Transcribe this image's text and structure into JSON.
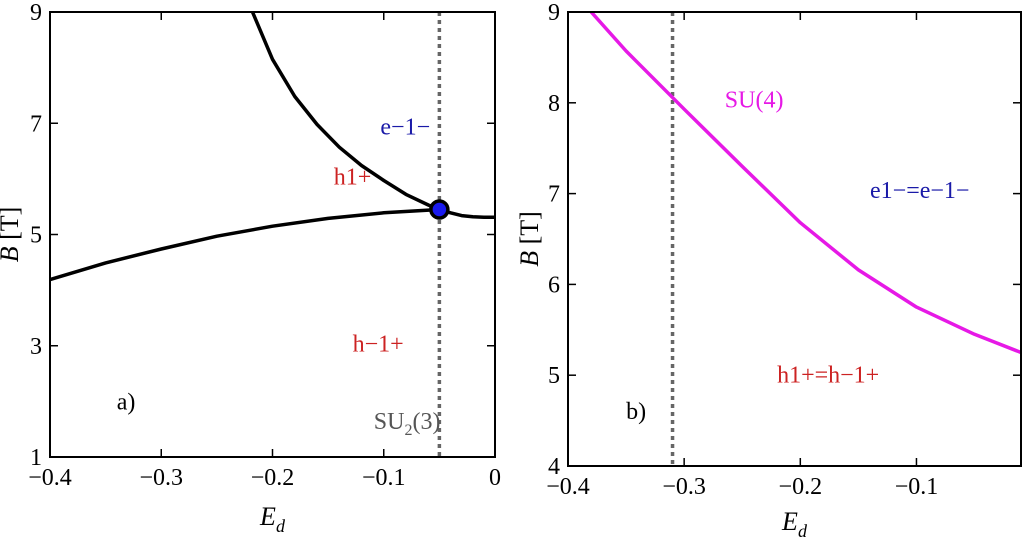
{
  "chart_data": [
    {
      "type": "line",
      "panel_label": "a)",
      "xlabel": {
        "main": "E",
        "sub": "d"
      },
      "ylabel": {
        "main": "B",
        "unit": " [T]"
      },
      "xlim": [
        -0.4,
        0.0
      ],
      "ylim": [
        1,
        9
      ],
      "xticks": [
        -0.4,
        -0.3,
        -0.2,
        -0.1,
        0.0
      ],
      "xtick_labels": [
        "−0.4",
        "−0.3",
        "−0.2",
        "−0.1",
        "0"
      ],
      "yticks": [
        1,
        3,
        5,
        7,
        9
      ],
      "ytick_labels": [
        "1",
        "3",
        "5",
        "7",
        "9"
      ],
      "series": [
        {
          "name": "upper-boundary",
          "color": "#000000",
          "x": [
            -0.218,
            -0.2,
            -0.18,
            -0.16,
            -0.14,
            -0.12,
            -0.1,
            -0.08,
            -0.06,
            -0.05,
            -0.04,
            -0.03,
            -0.02,
            -0.01,
            0.0
          ],
          "y": [
            9.0,
            8.15,
            7.48,
            6.98,
            6.57,
            6.24,
            5.97,
            5.72,
            5.53,
            5.45,
            5.39,
            5.34,
            5.32,
            5.31,
            5.31
          ]
        },
        {
          "name": "lower-boundary",
          "color": "#000000",
          "x": [
            -0.4,
            -0.35,
            -0.3,
            -0.25,
            -0.2,
            -0.15,
            -0.1,
            -0.05
          ],
          "y": [
            4.19,
            4.49,
            4.74,
            4.97,
            5.15,
            5.29,
            5.39,
            5.45
          ]
        }
      ],
      "vline": {
        "x": -0.05,
        "color": "#666666"
      },
      "marker": {
        "x": -0.05,
        "y": 5.45,
        "color": "#1a1aee"
      },
      "annotations": [
        {
          "text": "e−1−",
          "x": -0.103,
          "y": 6.8,
          "color": "#1a1aa8"
        },
        {
          "text": "h1+",
          "x": -0.145,
          "y": 5.9,
          "color": "#cc2222"
        },
        {
          "text": "h−1+",
          "x": -0.128,
          "y": 2.9,
          "color": "#cc2222"
        },
        {
          "text": "a)",
          "x": -0.34,
          "y": 1.85,
          "color": "#000000"
        }
      ],
      "su_label": {
        "main": "SU",
        "sub": "2",
        "rest": "(3)",
        "x": -0.079,
        "y": 1.5,
        "color": "#555555"
      }
    },
    {
      "type": "line",
      "panel_label": "b)",
      "xlabel": {
        "main": "E",
        "sub": "d"
      },
      "ylabel": {
        "main": "B",
        "unit": " [T]"
      },
      "xlim": [
        -0.4,
        -0.01
      ],
      "ylim": [
        4,
        9
      ],
      "xticks": [
        -0.4,
        -0.3,
        -0.2,
        -0.1
      ],
      "xtick_labels": [
        "−0.4",
        "−0.3",
        "−0.2",
        "−0.1"
      ],
      "yticks": [
        4,
        5,
        6,
        7,
        8,
        9
      ],
      "ytick_labels": [
        "4",
        "5",
        "6",
        "7",
        "8",
        "9"
      ],
      "series": [
        {
          "name": "SU(4) boundary",
          "color": "#e619e6",
          "x": [
            -0.38,
            -0.35,
            -0.3,
            -0.25,
            -0.2,
            -0.15,
            -0.1,
            -0.05,
            -0.01
          ],
          "y": [
            9.0,
            8.57,
            7.93,
            7.3,
            6.68,
            6.16,
            5.75,
            5.45,
            5.25
          ]
        }
      ],
      "vline": {
        "x": -0.31,
        "color": "#666666"
      },
      "annotations": [
        {
          "text": "SU(4)",
          "x": -0.265,
          "y": 7.95,
          "color": "#e619e6"
        },
        {
          "text": "e1−=e−1−",
          "x": -0.14,
          "y": 6.95,
          "color": "#1a1aa8"
        },
        {
          "text": "h1+=h−1+",
          "x": -0.22,
          "y": 4.92,
          "color": "#cc2222"
        },
        {
          "text": "b)",
          "x": -0.35,
          "y": 4.52,
          "color": "#000000"
        }
      ]
    }
  ]
}
